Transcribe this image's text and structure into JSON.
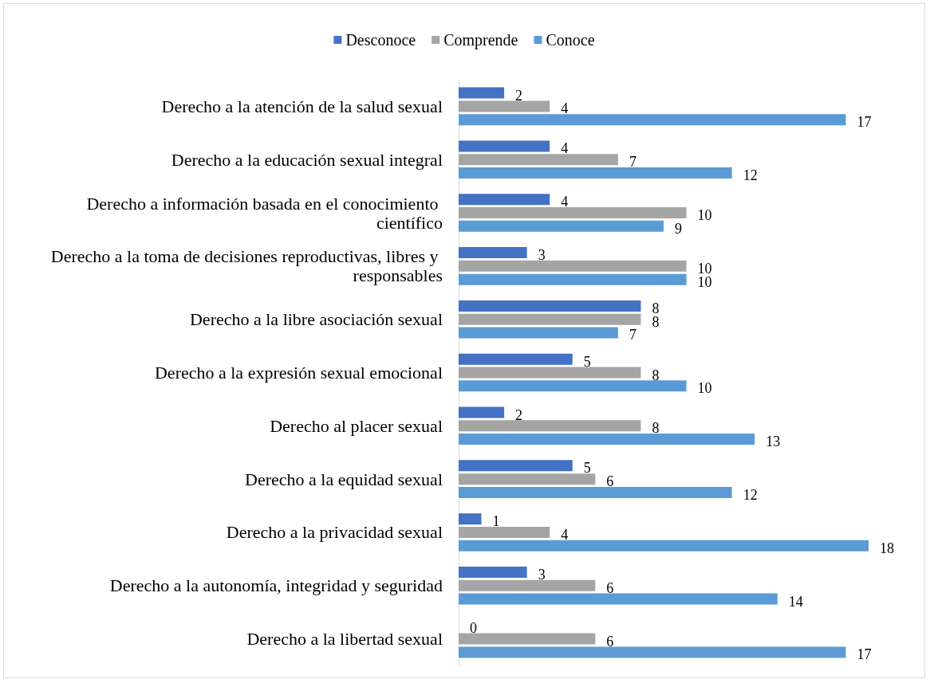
{
  "chart_data": {
    "type": "bar",
    "orientation": "horizontal",
    "categories": [
      "Derecho a la atención de la salud sexual",
      "Derecho a la educación sexual integral",
      "Derecho a información basada en el conocimiento científico",
      "Derecho a la toma de decisiones reproductivas, libres y responsables",
      "Derecho a la libre asociación sexual",
      "Derecho a la expresión sexual emocional",
      "Derecho al placer sexual",
      "Derecho a la equidad sexual",
      "Derecho a la privacidad sexual",
      "Derecho a la autonomía, integridad y seguridad",
      "Derecho a la libertad sexual"
    ],
    "series": [
      {
        "name": "Desconoce",
        "color": "#4472c4",
        "values": [
          2,
          4,
          4,
          3,
          8,
          5,
          2,
          5,
          1,
          3,
          0
        ]
      },
      {
        "name": "Comprende",
        "color": "#a5a5a5",
        "values": [
          4,
          7,
          10,
          10,
          8,
          8,
          8,
          6,
          4,
          6,
          6
        ]
      },
      {
        "name": "Conoce",
        "color": "#5b9bd5",
        "values": [
          17,
          12,
          9,
          10,
          7,
          10,
          13,
          12,
          18,
          14,
          17
        ]
      }
    ],
    "data_labels": true,
    "legend": "top"
  }
}
